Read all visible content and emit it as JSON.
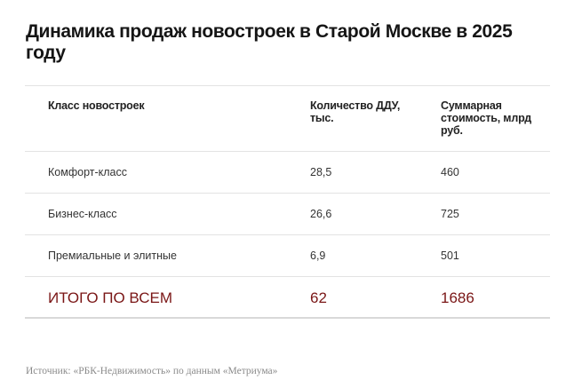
{
  "title": "Динамика продаж новостроек в Старой Москве в 2025 году",
  "colors": {
    "total_row": "#7a1616",
    "divider": "#e3e3e3",
    "source_text": "#8a8a8a"
  },
  "table": {
    "headers": [
      "Класс новостроек",
      "Количество ДДУ, тыс.",
      "Суммарная стоимость, млрд руб."
    ],
    "rows": [
      {
        "class": "Комфорт-класс",
        "ddu": "28,5",
        "value": "460"
      },
      {
        "class": "Бизнес-класс",
        "ddu": "26,6",
        "value": "725"
      },
      {
        "class": "Премиальные и элитные",
        "ddu": "6,9",
        "value": "501"
      }
    ],
    "total": {
      "class": "ИТОГО ПО ВСЕМ",
      "ddu": "62",
      "value": "1686"
    }
  },
  "source": "Источник: «РБК-Недвижимость» по данным «Метриума»"
}
